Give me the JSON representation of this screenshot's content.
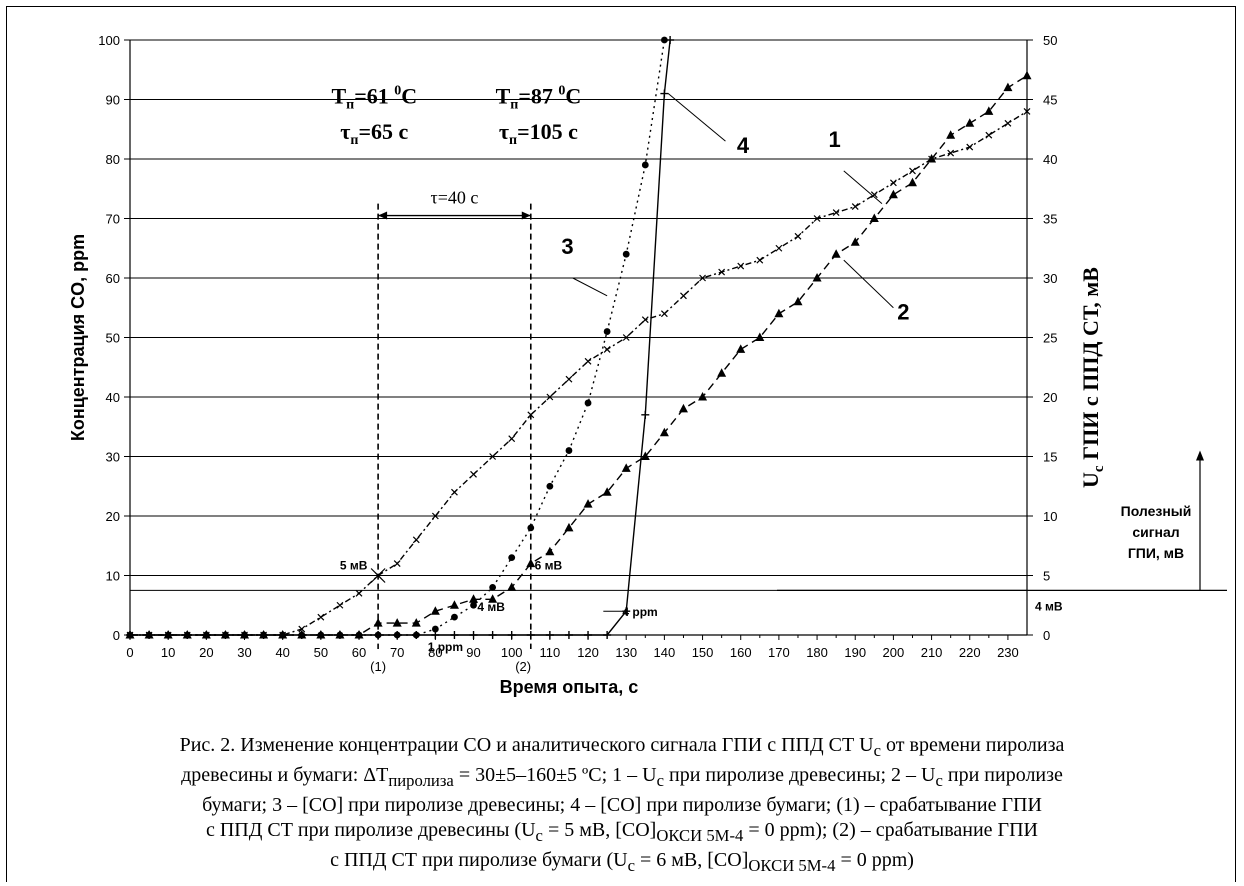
{
  "chart_data": {
    "type": "line",
    "xlabel": "Время опыта, с",
    "ylabel_left": "Концентрация CO, ppm",
    "ylabel_right_main": "U",
    "ylabel_right_sub": "c",
    "ylabel_right_rest": " ГПИ с ППД СТ, мВ",
    "xlim": [
      0,
      235
    ],
    "ylim_left": [
      0,
      100
    ],
    "ylim_right": [
      0,
      50
    ],
    "grid": "horizontal",
    "xticks": [
      "0",
      "10",
      "20",
      "30",
      "40",
      "50",
      "60",
      "70",
      "80",
      "90",
      "100",
      "110",
      "120",
      "130",
      "140",
      "150",
      "160",
      "170",
      "180",
      "190",
      "200",
      "210",
      "220",
      "230"
    ],
    "yticks_left": [
      "0",
      "10",
      "20",
      "30",
      "40",
      "50",
      "60",
      "70",
      "80",
      "90",
      "100"
    ],
    "yticks_right": [
      "0",
      "5",
      "10",
      "15",
      "20",
      "25",
      "30",
      "35",
      "40",
      "45",
      "50"
    ],
    "series": [
      {
        "id": "1",
        "style": "dash-dot",
        "marker": "x",
        "axis": "left",
        "x": [
          0,
          5,
          10,
          15,
          20,
          25,
          30,
          35,
          40,
          45,
          50,
          55,
          60,
          65,
          70,
          75,
          80,
          85,
          90,
          95,
          100,
          105,
          110,
          115,
          120,
          125,
          130,
          135,
          140,
          145,
          150,
          155,
          160,
          165,
          170,
          175,
          180,
          185,
          190,
          195,
          200,
          205,
          210,
          215,
          220,
          225,
          230,
          235
        ],
        "y": [
          0,
          0,
          0,
          0,
          0,
          0,
          0,
          0,
          0,
          1,
          3,
          5,
          7,
          10,
          12,
          16,
          20,
          24,
          27,
          30,
          33,
          37,
          40,
          43,
          46,
          48,
          50,
          53,
          54,
          57,
          60,
          61,
          62,
          63,
          65,
          67,
          70,
          71,
          72,
          74,
          76,
          78,
          80,
          81,
          82,
          84,
          86,
          88
        ]
      },
      {
        "id": "2",
        "style": "dashed",
        "marker": "triangle",
        "axis": "left",
        "x": [
          0,
          5,
          10,
          15,
          20,
          25,
          30,
          35,
          40,
          45,
          50,
          55,
          60,
          65,
          70,
          75,
          80,
          85,
          90,
          95,
          100,
          105,
          110,
          115,
          120,
          125,
          130,
          135,
          140,
          145,
          150,
          155,
          160,
          165,
          170,
          175,
          180,
          185,
          190,
          195,
          200,
          205,
          210,
          215,
          220,
          225,
          230,
          235
        ],
        "y": [
          0,
          0,
          0,
          0,
          0,
          0,
          0,
          0,
          0,
          0,
          0,
          0,
          0,
          2,
          2,
          2,
          4,
          5,
          6,
          6,
          8,
          12,
          14,
          18,
          22,
          24,
          28,
          30,
          34,
          38,
          40,
          44,
          48,
          50,
          54,
          56,
          60,
          64,
          66,
          70,
          74,
          76,
          80,
          84,
          86,
          88,
          92,
          94
        ]
      },
      {
        "id": "3",
        "style": "dotted",
        "marker": "circle",
        "axis": "left",
        "x": [
          0,
          5,
          10,
          15,
          20,
          25,
          30,
          35,
          40,
          45,
          50,
          55,
          60,
          65,
          70,
          75,
          80,
          85,
          90,
          95,
          100,
          105,
          110,
          115,
          120,
          125,
          130,
          135,
          140
        ],
        "y": [
          0,
          0,
          0,
          0,
          0,
          0,
          0,
          0,
          0,
          0,
          0,
          0,
          0,
          0,
          0,
          0,
          1,
          3,
          5,
          8,
          13,
          18,
          25,
          31,
          39,
          51,
          64,
          79,
          100
        ]
      },
      {
        "id": "4",
        "style": "solid",
        "marker": "plus",
        "axis": "left",
        "x": [
          0,
          5,
          10,
          15,
          20,
          25,
          30,
          35,
          40,
          45,
          50,
          55,
          60,
          65,
          70,
          75,
          80,
          85,
          90,
          95,
          100,
          105,
          110,
          115,
          120,
          125,
          130,
          135,
          140,
          141.5
        ],
        "y": [
          0,
          0,
          0,
          0,
          0,
          0,
          0,
          0,
          0,
          0,
          0,
          0,
          0,
          0,
          0,
          0,
          0,
          0,
          0,
          0,
          0,
          0,
          0,
          0,
          0,
          0,
          4,
          37,
          91,
          100
        ]
      }
    ],
    "annotations": {
      "t1_line1": "T",
      "t1_line1_sub": "п",
      "t1_line1_rest": "=61 ",
      "t1_line1_sup": "0",
      "t1_line1_end": "C",
      "t1_line2": "τ",
      "t1_line2_sub": "п",
      "t1_line2_rest": "=65 с",
      "t2_line1": "T",
      "t2_line1_sub": "п",
      "t2_line1_rest": "=87 ",
      "t2_line1_sup": "0",
      "t2_line1_end": "C",
      "t2_line2": "τ",
      "t2_line2_sub": "п",
      "t2_line2_rest": "=105 с",
      "tau": "τ=40 с",
      "marker1": "(1)",
      "marker2": "(2)",
      "label_5mv": "5 мВ",
      "label_6mv": "6 мВ",
      "label_4mv_inner": "4 мВ",
      "label_4mv_right": "4 мВ",
      "label_4ppm": "4 ppm",
      "label_1ppm": "1 ppm",
      "curve_1": "1",
      "curve_2": "2",
      "curve_3": "3",
      "curve_4": "4",
      "useful_signal": [
        "Полезный",
        "сигнал",
        "ГПИ, мВ"
      ]
    }
  },
  "caption": {
    "line1": "Рис. 2. Изменение концентрации CO и аналитического сигнала ГПИ с ППД СТ U",
    "line1_sub": "c",
    "line1_end": " от времени пиролиза",
    "line2_a": "древесины и бумаги: ΔT",
    "line2_sub": "пиролиза",
    "line2_b": " = 30±5–160±5 ºC; 1 – U",
    "line2_sub2": "c",
    "line2_c": " при пиролизе древесины; 2 – U",
    "line2_sub3": "c",
    "line2_d": " при пиролизе",
    "line3": "бумаги; 3 – [CO] при пиролизе древесины; 4 – [CO] при пиролизе бумаги; (1) – срабатывание ГПИ",
    "line4_a": "с ППД СТ при пиролизе древесины (U",
    "line4_sub": "c",
    "line4_b": " = 5 мВ, [CO]",
    "line4_sub2": "ОКСИ 5М-4",
    "line4_c": " = 0 ppm); (2) – срабатывание ГПИ",
    "line5_a": "с ППД СТ при пиролизе бумаги (U",
    "line5_sub": "c",
    "line5_b": " = 6 мВ, [CO]",
    "line5_sub2": "ОКСИ 5М-4",
    "line5_c": " = 0 ppm)"
  }
}
